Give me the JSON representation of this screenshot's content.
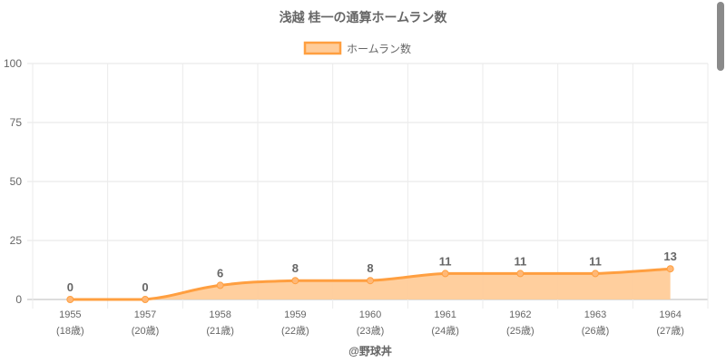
{
  "chart_data": {
    "type": "line",
    "title": "浅越 桂一の通算ホームラン数",
    "legend": {
      "label": "ホームラン数",
      "placement": "top-center"
    },
    "categories": [
      "1955",
      "1957",
      "1958",
      "1959",
      "1960",
      "1961",
      "1962",
      "1963",
      "1964"
    ],
    "sublabels": [
      "(18歳)",
      "(20歳)",
      "(21歳)",
      "(22歳)",
      "(23歳)",
      "(24歳)",
      "(25歳)",
      "(26歳)",
      "(27歳)"
    ],
    "series": [
      {
        "name": "ホームラン数",
        "values": [
          0,
          0,
          6,
          8,
          8,
          11,
          11,
          11,
          13
        ]
      }
    ],
    "yticks": [
      0,
      25,
      50,
      75,
      100
    ],
    "ylim": [
      0,
      100
    ],
    "grid": true,
    "xlabel": "",
    "ylabel": "",
    "credit": "@野球丼",
    "colors": {
      "line": "#ff9f40",
      "fill": "#ffcc99",
      "text": "#666666"
    }
  }
}
